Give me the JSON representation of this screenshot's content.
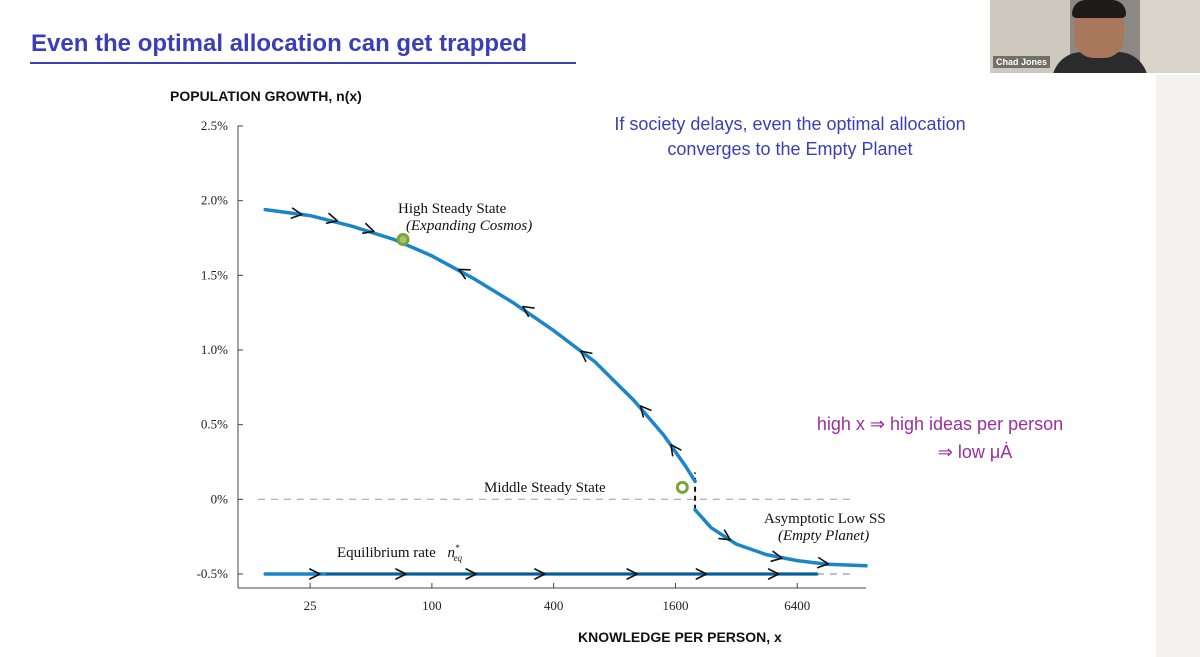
{
  "slide": {
    "title": "Even the optimal allocation can get trapped",
    "presenter_name": "Chad Jones",
    "note_blue": [
      "If society delays, even the optimal allocation",
      "converges to the Empty Planet"
    ],
    "note_purple": [
      "high x ⇒ high ideas per person",
      "⇒ low μȦ"
    ]
  },
  "colors": {
    "title": "#3a3fb8",
    "curve": "#1a86c8",
    "dashed": "#b79cc9",
    "steady_state_marker": "#7ca33a",
    "note_purple": "#9b2f9e"
  },
  "chart_data": {
    "type": "line",
    "ylabel": "POPULATION GROWTH, n(x)",
    "xlabel": "KNOWLEDGE PER PERSON, x",
    "x_scale": "log",
    "x_ticks": [
      25,
      100,
      400,
      1600,
      6400
    ],
    "x_tick_labels": [
      "25",
      "100",
      "400",
      "1600",
      "6400"
    ],
    "y_ticks": [
      -0.5,
      0,
      0.5,
      1.0,
      1.5,
      2.0,
      2.5
    ],
    "y_tick_labels": [
      "-0.5%",
      "0%",
      "0.5%",
      "1.0%",
      "1.5%",
      "2.0%",
      "2.5%"
    ],
    "xlim": [
      11,
      14000
    ],
    "ylim": [
      -0.58,
      2.5
    ],
    "series": [
      {
        "role": "optimal-upper-branch",
        "x": [
          15,
          25,
          40,
          65,
          100,
          160,
          250,
          400,
          640,
          1000,
          1400,
          1800,
          2000
        ],
        "y": [
          1.94,
          1.9,
          1.83,
          1.74,
          1.63,
          1.48,
          1.32,
          1.13,
          0.92,
          0.66,
          0.43,
          0.22,
          0.12
        ]
      },
      {
        "role": "optimal-lower-branch",
        "x": [
          2000,
          2400,
          3200,
          4500,
          6400,
          9000,
          14000
        ],
        "y": [
          -0.07,
          -0.19,
          -0.3,
          -0.37,
          -0.41,
          -0.435,
          -0.445
        ]
      },
      {
        "role": "equilibrium-rate",
        "x": [
          15,
          8000
        ],
        "y": [
          -0.5,
          -0.5
        ]
      }
    ],
    "reference_line": {
      "y": 0,
      "style": "dashed"
    },
    "vertical_segment": {
      "x": 2000,
      "y": [
        -0.07,
        0.18
      ],
      "style": "dashed"
    },
    "markers": [
      {
        "label": "High Steady State",
        "sublabel": "(Expanding Cosmos)",
        "x": 72,
        "y": 1.74
      },
      {
        "label": "Middle Steady State",
        "sublabel": "",
        "x": 1730,
        "y": 0.08
      }
    ],
    "annotations": [
      {
        "label": "Asymptotic Low SS",
        "sublabel": "(Empty Planet)"
      },
      {
        "label": "Equilibrium rate",
        "symbol": "n*eq"
      }
    ],
    "arrows": [
      {
        "x": 22,
        "y": 1.91,
        "dir": "right"
      },
      {
        "x": 33,
        "y": 1.87,
        "dir": "right"
      },
      {
        "x": 50,
        "y": 1.8,
        "dir": "right"
      },
      {
        "x": 140,
        "y": 1.53,
        "dir": "left"
      },
      {
        "x": 290,
        "y": 1.28,
        "dir": "left"
      },
      {
        "x": 560,
        "y": 0.98,
        "dir": "left"
      },
      {
        "x": 1100,
        "y": 0.61,
        "dir": "left"
      },
      {
        "x": 1550,
        "y": 0.35,
        "dir": "left"
      },
      {
        "x": 2900,
        "y": -0.26,
        "dir": "right"
      },
      {
        "x": 5200,
        "y": -0.39,
        "dir": "right"
      },
      {
        "x": 8800,
        "y": -0.43,
        "dir": "right"
      },
      {
        "x": 27,
        "y": -0.5,
        "dir": "right"
      },
      {
        "x": 72,
        "y": -0.5,
        "dir": "right"
      },
      {
        "x": 160,
        "y": -0.5,
        "dir": "right"
      },
      {
        "x": 350,
        "y": -0.5,
        "dir": "right"
      },
      {
        "x": 1000,
        "y": -0.5,
        "dir": "right"
      },
      {
        "x": 2200,
        "y": -0.5,
        "dir": "right"
      },
      {
        "x": 5000,
        "y": -0.5,
        "dir": "right"
      }
    ],
    "legend": "none"
  }
}
